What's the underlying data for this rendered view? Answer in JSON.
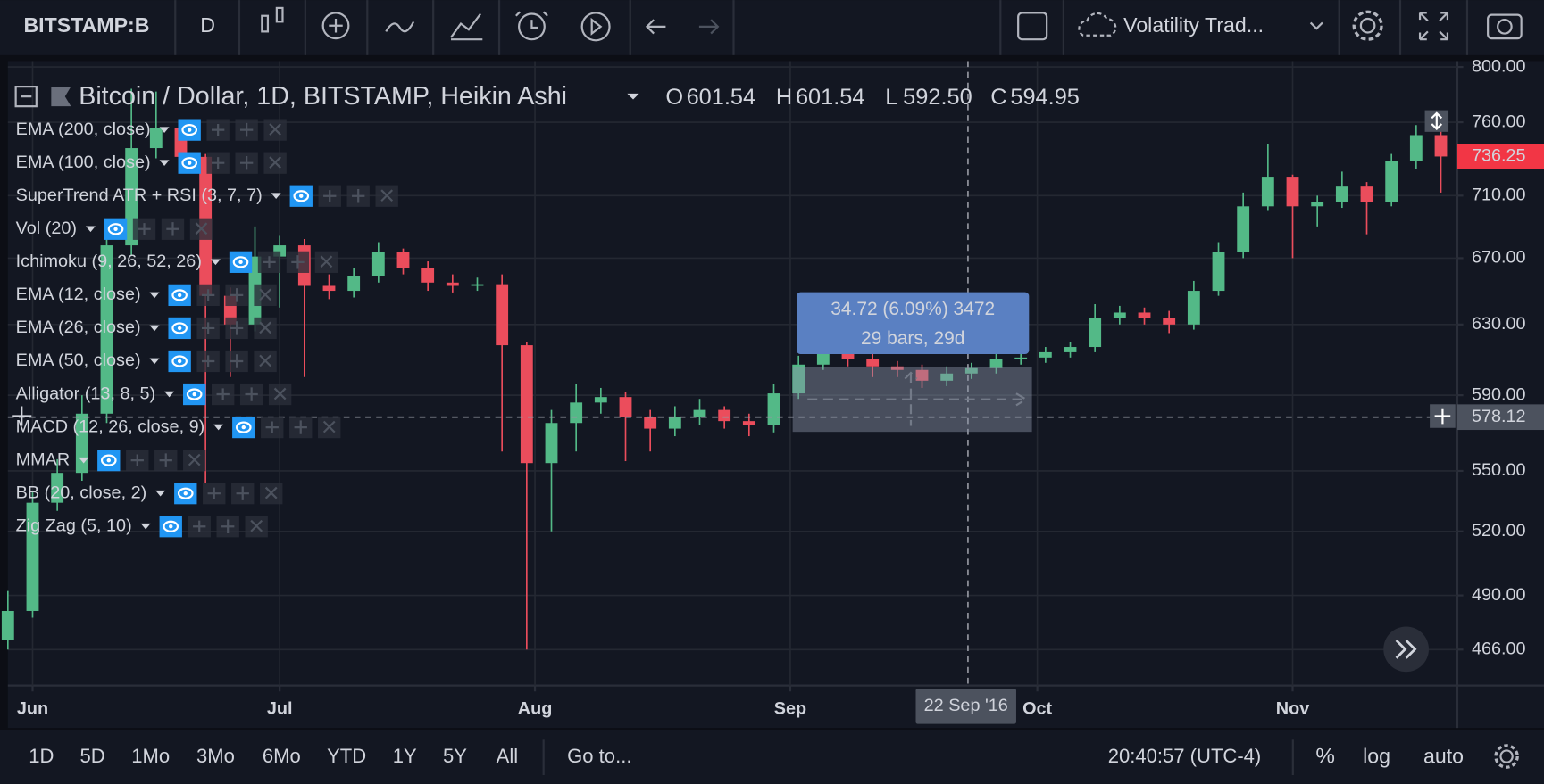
{
  "toolbar": {
    "symbol": "BITSTAMP:B",
    "interval": "D",
    "layout": "Volatility Trad..."
  },
  "legend": {
    "title": "Bitcoin / Dollar, 1D, BITSTAMP, Heikin Ashi",
    "o_label": "O",
    "o": "601.54",
    "h_label": "H",
    "h": "601.54",
    "l_label": "L",
    "l": "592.50",
    "c_label": "C",
    "c": "594.95"
  },
  "studies": [
    "EMA (200, close)",
    "EMA (100, close)",
    "SuperTrend ATR + RSI (3, 7, 7)",
    "Vol (20)",
    "Ichimoku (9, 26, 52, 26)",
    "EMA (12, close)",
    "EMA (26, close)",
    "EMA (50, close)",
    "Alligator (13, 8, 5)",
    "MACD (12, 26, close, 9)",
    "MMAR",
    "BB (20, close, 2)",
    "Zig Zag (5, 10)"
  ],
  "measure": {
    "line1": "34.72 (6.09%) 3472",
    "line2": "29 bars, 29d"
  },
  "chart_data": {
    "type": "candlestick",
    "log_scale": true,
    "grid": true,
    "up_color": "#53b987",
    "down_color": "#eb4d5c",
    "xlim": [
      "2016-05-29",
      "2016-11-21"
    ],
    "xticks": [
      {
        "value": "2016-06-01",
        "label": "Jun"
      },
      {
        "value": "2016-07-01",
        "label": "Jul"
      },
      {
        "value": "2016-08-01",
        "label": "Aug"
      },
      {
        "value": "2016-09-01",
        "label": "Sep"
      },
      {
        "value": "2016-10-01",
        "label": "Oct"
      },
      {
        "value": "2016-11-01",
        "label": "Nov"
      }
    ],
    "ylim": [
      450.7,
      804.4
    ],
    "yticks": [
      {
        "value": 466,
        "label": "466.00"
      },
      {
        "value": 490,
        "label": "490.00"
      },
      {
        "value": 520,
        "label": "520.00"
      },
      {
        "value": 550,
        "label": "550.00"
      },
      {
        "value": 590,
        "label": "590.00"
      },
      {
        "value": 630,
        "label": "630.00"
      },
      {
        "value": 670,
        "label": "670.00"
      },
      {
        "value": 710,
        "label": "710.00"
      },
      {
        "value": 760,
        "label": "760.00"
      },
      {
        "value": 800,
        "label": "800.00"
      }
    ],
    "x": [
      "2016-05-29",
      "2016-06-01",
      "2016-06-04",
      "2016-06-07",
      "2016-06-10",
      "2016-06-13",
      "2016-06-16",
      "2016-06-19",
      "2016-06-22",
      "2016-06-25",
      "2016-06-28",
      "2016-07-01",
      "2016-07-04",
      "2016-07-07",
      "2016-07-10",
      "2016-07-13",
      "2016-07-16",
      "2016-07-19",
      "2016-07-22",
      "2016-07-25",
      "2016-07-28",
      "2016-07-31",
      "2016-08-03",
      "2016-08-06",
      "2016-08-09",
      "2016-08-12",
      "2016-08-15",
      "2016-08-18",
      "2016-08-21",
      "2016-08-24",
      "2016-08-27",
      "2016-08-30",
      "2016-09-02",
      "2016-09-05",
      "2016-09-08",
      "2016-09-11",
      "2016-09-14",
      "2016-09-17",
      "2016-09-20",
      "2016-09-23",
      "2016-09-26",
      "2016-09-29",
      "2016-10-02",
      "2016-10-05",
      "2016-10-08",
      "2016-10-11",
      "2016-10-14",
      "2016-10-17",
      "2016-10-20",
      "2016-10-23",
      "2016-10-26",
      "2016-10-29",
      "2016-11-01",
      "2016-11-04",
      "2016-11-07",
      "2016-11-10",
      "2016-11-13",
      "2016-11-16",
      "2016-11-19"
    ],
    "open": [
      470,
      483,
      534,
      549,
      580,
      678,
      742,
      756,
      736,
      647,
      630,
      671,
      678,
      653,
      650,
      659,
      674,
      664,
      655,
      653,
      654,
      618,
      554,
      575,
      586,
      589,
      578,
      572,
      578,
      582,
      576,
      574,
      591,
      607,
      621,
      610,
      606,
      604,
      598,
      602,
      605,
      610,
      611,
      614,
      617,
      634,
      637,
      634,
      630,
      650,
      674,
      703,
      722,
      703,
      706,
      716,
      706,
      733,
      751
    ],
    "high": [
      492,
      540,
      556,
      590,
      690,
      784,
      782,
      760,
      738,
      652,
      690,
      684,
      682,
      660,
      664,
      680,
      676,
      668,
      660,
      658,
      660,
      620,
      582,
      596,
      594,
      592,
      582,
      584,
      588,
      584,
      580,
      596,
      612,
      632,
      624,
      614,
      609,
      607,
      606,
      608,
      613,
      614,
      617,
      620,
      642,
      641,
      640,
      638,
      656,
      680,
      712,
      745,
      724,
      710,
      726,
      719,
      738,
      758,
      754
    ],
    "low": [
      466,
      480,
      530,
      545,
      575,
      672,
      735,
      725,
      544,
      600,
      626,
      640,
      600,
      645,
      646,
      655,
      660,
      650,
      649,
      650,
      560,
      466,
      520,
      560,
      580,
      555,
      560,
      568,
      574,
      572,
      568,
      570,
      588,
      604,
      606,
      600,
      600,
      594,
      595,
      599,
      602,
      607,
      608,
      611,
      614,
      630,
      630,
      625,
      627,
      647,
      670,
      700,
      670,
      690,
      702,
      685,
      703,
      728,
      712
    ],
    "close": [
      483,
      534,
      549,
      580,
      678,
      742,
      756,
      736,
      647,
      630,
      671,
      678,
      653,
      650,
      659,
      674,
      664,
      655,
      653,
      654,
      618,
      554,
      575,
      586,
      589,
      578,
      572,
      578,
      582,
      576,
      574,
      591,
      607,
      621,
      610,
      606,
      604,
      598,
      602,
      605,
      610,
      611,
      614,
      617,
      634,
      637,
      634,
      630,
      650,
      674,
      703,
      722,
      703,
      706,
      716,
      706,
      733,
      751,
      736.25
    ],
    "last_price": 736.25,
    "crosshair_price": 578.12,
    "crosshair_date": "22 Sep '16"
  },
  "bottom_bar": {
    "ranges": [
      "1D",
      "5D",
      "1Mo",
      "3Mo",
      "6Mo",
      "YTD",
      "1Y",
      "5Y",
      "All"
    ],
    "goto": "Go to...",
    "clock": "20:40:57 (UTC-4)",
    "percent": "%",
    "log": "log",
    "auto": "auto"
  }
}
